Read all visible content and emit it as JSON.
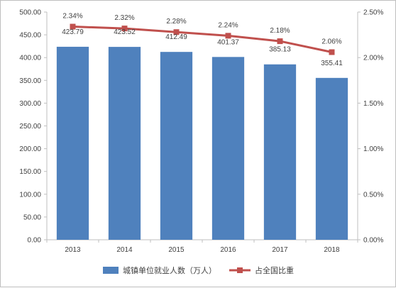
{
  "chart_data": {
    "type": "bar",
    "categories": [
      "2013",
      "2014",
      "2015",
      "2016",
      "2017",
      "2018"
    ],
    "series": [
      {
        "name": "城镇单位就业人数（万人）",
        "type": "bar",
        "axis": "left",
        "color": "#4f81bd",
        "values": [
          423.79,
          423.52,
          412.49,
          401.37,
          385.13,
          355.41
        ],
        "labels": [
          "423.79",
          "423.52",
          "412.49",
          "401.37",
          "385.13",
          "355.41"
        ]
      },
      {
        "name": "占全国比重",
        "type": "line",
        "axis": "right",
        "color": "#c0504d",
        "marker": "square",
        "values": [
          2.34,
          2.32,
          2.28,
          2.24,
          2.18,
          2.06
        ],
        "labels": [
          "2.34%",
          "2.32%",
          "2.28%",
          "2.24%",
          "2.18%",
          "2.06%"
        ]
      }
    ],
    "y_left": {
      "range": [
        0,
        500
      ],
      "ticks": [
        "0.00",
        "50.00",
        "100.00",
        "150.00",
        "200.00",
        "250.00",
        "300.00",
        "350.00",
        "400.00",
        "450.00",
        "500.00"
      ]
    },
    "y_right": {
      "range": [
        0,
        2.5
      ],
      "unit": "%",
      "ticks": [
        "0.00%",
        "0.50%",
        "1.00%",
        "1.50%",
        "2.00%",
        "2.50%"
      ]
    },
    "grid": false,
    "legend_position": "bottom"
  }
}
